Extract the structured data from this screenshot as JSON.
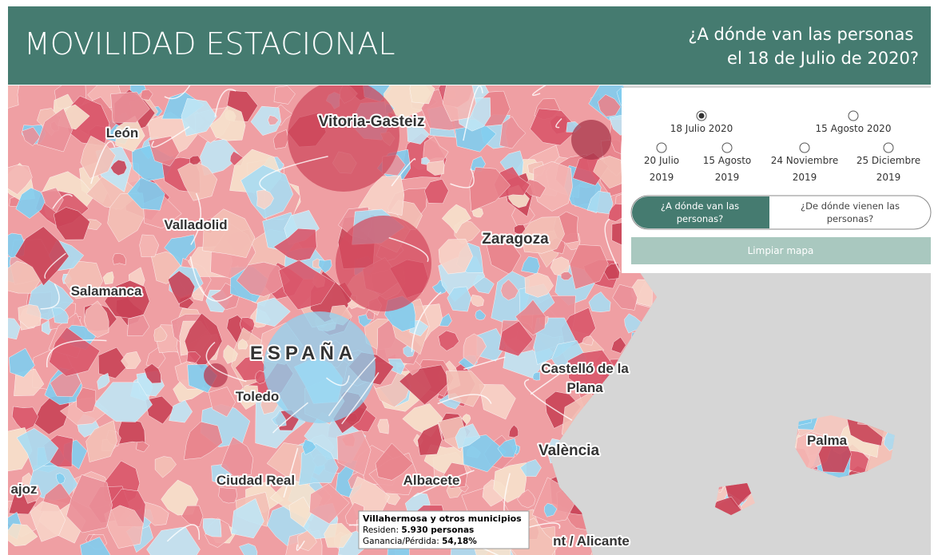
{
  "header": {
    "title": "MOVILIDAD ESTACIONAL",
    "subtitle": [
      "¿A dónde van las personas",
      "el 18 de Julio de 2020?"
    ]
  },
  "panel": {
    "dates": [
      {
        "label": [
          "18 Julio 2020"
        ],
        "selected": true
      },
      {
        "label": [
          "15 Agosto 2020"
        ],
        "selected": false
      },
      {
        "label": [
          "20 Julio",
          "2019"
        ],
        "selected": false
      },
      {
        "label": [
          "15 Agosto",
          "2019"
        ],
        "selected": false
      },
      {
        "label": [
          "24 Noviembre",
          "2019"
        ],
        "selected": false
      },
      {
        "label": [
          "25 Diciembre",
          "2019"
        ],
        "selected": false
      }
    ],
    "toggle": [
      [
        "¿A dónde van las",
        "personas?"
      ],
      [
        "¿De dónde vienen las",
        "personas?"
      ]
    ],
    "clear_button": "Limpiar mapa"
  },
  "map": {
    "labels": [
      [
        "León"
      ],
      [
        "Vitoria-Gasteiz"
      ],
      [
        "Valladolid"
      ],
      [
        "Zaragoza"
      ],
      [
        "Salamanca"
      ],
      [
        "ESPAÑA"
      ],
      [
        "Castelló de la",
        "Plana"
      ],
      [
        "Toledo"
      ],
      [
        "València"
      ],
      [
        "Palma"
      ],
      [
        "Ciudad Real"
      ],
      [
        "Albacete"
      ],
      [
        "ajoz"
      ],
      [
        "nt / Alicante"
      ]
    ]
  },
  "tooltip": {
    "name": "Villahermosa y otros municipios",
    "residents_label": "Residen:",
    "residents_value": "5.930 personas",
    "change_label": "Ganancia/Pérdida:",
    "change_value": "54,18%"
  }
}
